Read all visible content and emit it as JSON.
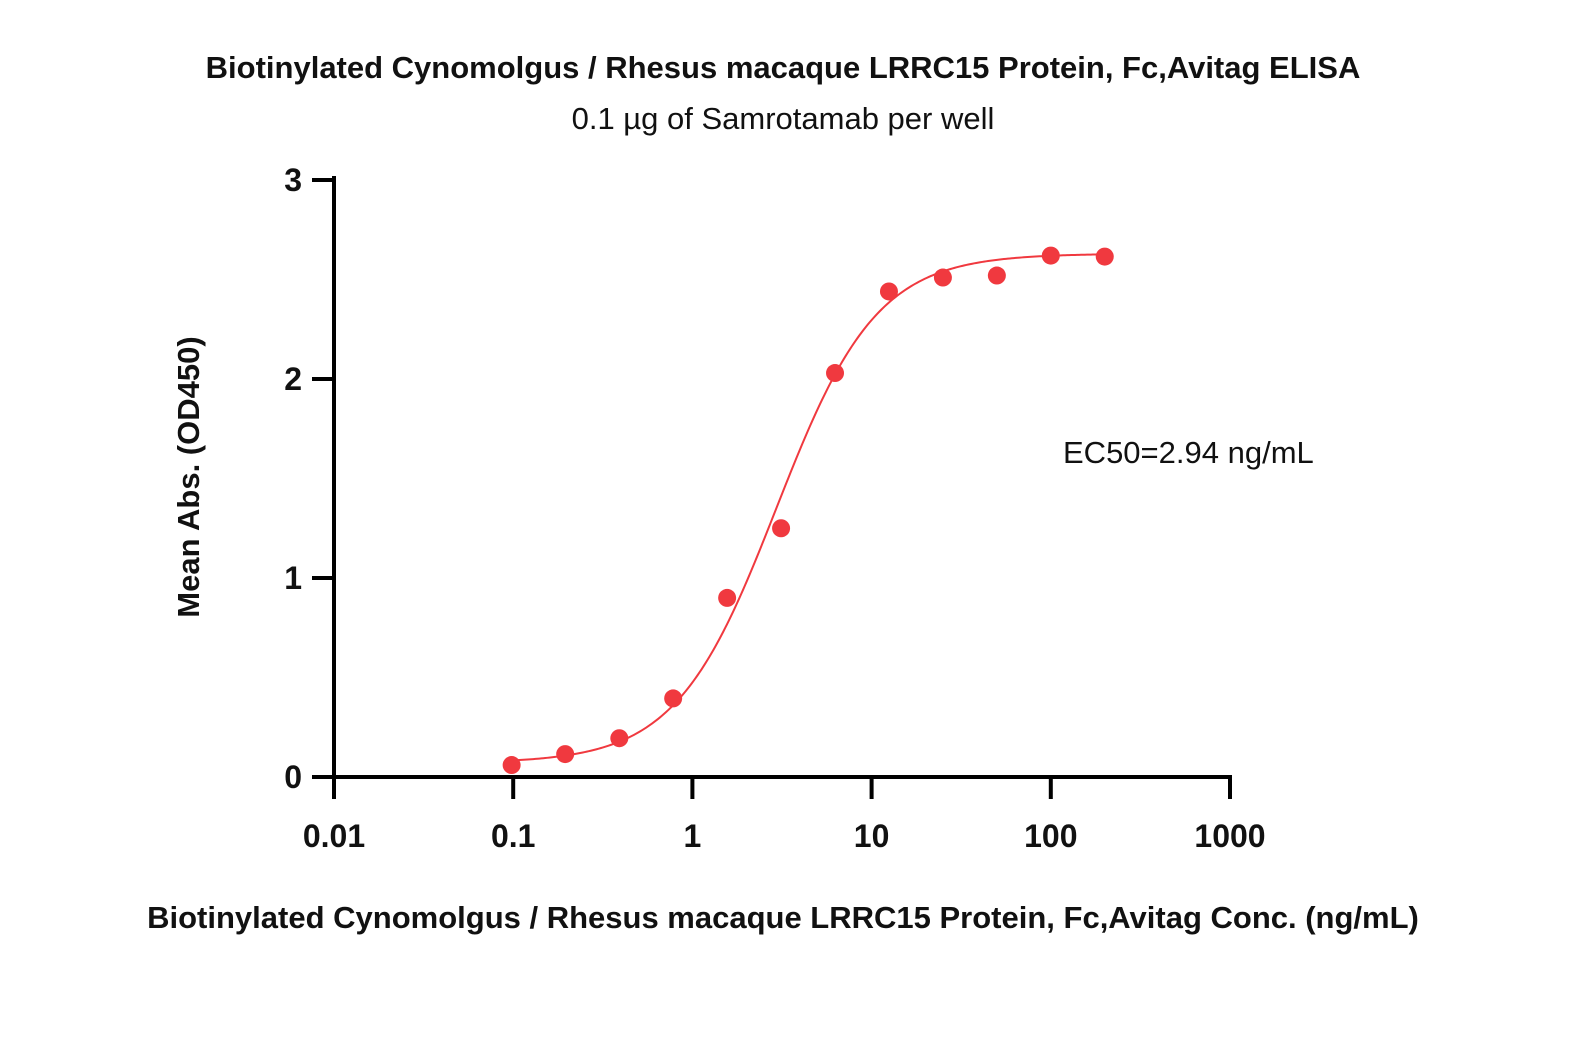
{
  "chart_data": {
    "type": "scatter",
    "title": "Biotinylated Cynomolgus / Rhesus macaque LRRC15 Protein, Fc,Avitag ELISA",
    "subtitle": "0.1 µg of Samrotamab per well",
    "xlabel": "Biotinylated Cynomolgus / Rhesus macaque LRRC15 Protein, Fc,Avitag Conc. (ng/mL)",
    "ylabel": "Mean Abs. (OD450)",
    "x_scale": "log",
    "xlim": [
      0.01,
      1000
    ],
    "ylim": [
      0,
      3
    ],
    "x_ticks": [
      "0.01",
      "0.1",
      "1",
      "10",
      "100",
      "1000"
    ],
    "y_ticks": [
      "0",
      "1",
      "2",
      "3"
    ],
    "grid": false,
    "annotation": "EC50=2.94 ng/mL",
    "series": [
      {
        "color": "#f0393f",
        "points": [
          {
            "x": 0.098,
            "y": 0.06
          },
          {
            "x": 0.195,
            "y": 0.115
          },
          {
            "x": 0.391,
            "y": 0.195
          },
          {
            "x": 0.781,
            "y": 0.395
          },
          {
            "x": 1.5625,
            "y": 0.9
          },
          {
            "x": 3.125,
            "y": 1.25
          },
          {
            "x": 6.25,
            "y": 2.03
          },
          {
            "x": 12.5,
            "y": 2.44
          },
          {
            "x": 25,
            "y": 2.51
          },
          {
            "x": 50,
            "y": 2.52
          },
          {
            "x": 100,
            "y": 2.62
          },
          {
            "x": 200,
            "y": 2.615
          }
        ],
        "fit": {
          "model": "4PL",
          "bottom": 0.07,
          "top": 2.63,
          "ec50": 2.94,
          "hill": 1.55
        }
      }
    ]
  }
}
